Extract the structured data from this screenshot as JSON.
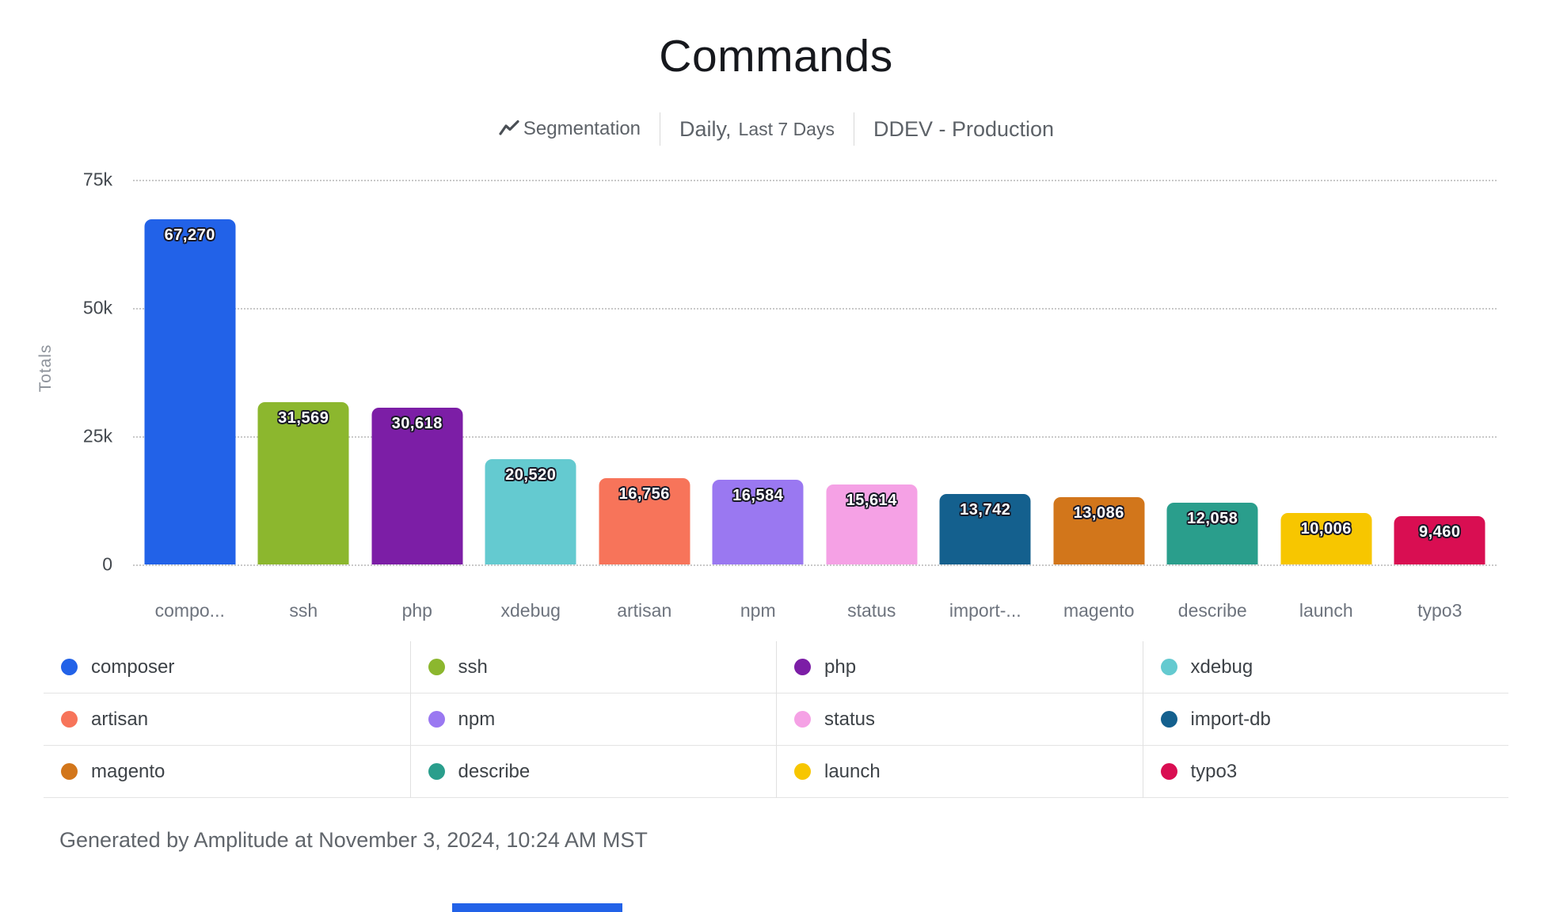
{
  "header": {
    "title": "Commands"
  },
  "subtitle": {
    "segmentation_label": "Segmentation",
    "range_primary": "Daily,",
    "range_secondary": "Last 7 Days",
    "project_label": "DDEV - Production"
  },
  "chart_data": {
    "type": "bar",
    "title": "Commands",
    "xlabel": "",
    "ylabel": "Totals",
    "ylim": [
      0,
      75000
    ],
    "grid": "horizontal dotted",
    "legend_position": "bottom table, 4 columns",
    "yticks": [
      {
        "value": 0,
        "label": "0"
      },
      {
        "value": 25000,
        "label": "25k"
      },
      {
        "value": 50000,
        "label": "50k"
      },
      {
        "value": 75000,
        "label": "75k"
      }
    ],
    "bars": [
      {
        "name": "composer",
        "x_label": "compo...",
        "value": 67270,
        "value_label": "67,270",
        "color": "#2262e8"
      },
      {
        "name": "ssh",
        "x_label": "ssh",
        "value": 31569,
        "value_label": "31,569",
        "color": "#8cb72e"
      },
      {
        "name": "php",
        "x_label": "php",
        "value": 30618,
        "value_label": "30,618",
        "color": "#7c1ea6"
      },
      {
        "name": "xdebug",
        "x_label": "xdebug",
        "value": 20520,
        "value_label": "20,520",
        "color": "#64cad0"
      },
      {
        "name": "artisan",
        "x_label": "artisan",
        "value": 16756,
        "value_label": "16,756",
        "color": "#f7745a"
      },
      {
        "name": "npm",
        "x_label": "npm",
        "value": 16584,
        "value_label": "16,584",
        "color": "#9a78f1"
      },
      {
        "name": "status",
        "x_label": "status",
        "value": 15614,
        "value_label": "15,614",
        "color": "#f5a1e5"
      },
      {
        "name": "import-db",
        "x_label": "import-...",
        "value": 13742,
        "value_label": "13,742",
        "color": "#14608e"
      },
      {
        "name": "magento",
        "x_label": "magento",
        "value": 13086,
        "value_label": "13,086",
        "color": "#d2761b"
      },
      {
        "name": "describe",
        "x_label": "describe",
        "value": 12058,
        "value_label": "12,058",
        "color": "#2a9e8c"
      },
      {
        "name": "launch",
        "x_label": "launch",
        "value": 10006,
        "value_label": "10,006",
        "color": "#f7c600"
      },
      {
        "name": "typo3",
        "x_label": "typo3",
        "value": 9460,
        "value_label": "9,460",
        "color": "#d90e52"
      }
    ]
  },
  "footer": {
    "text": "Generated by Amplitude at November 3, 2024, 10:24 AM MST"
  },
  "accent_color": "#2262e8"
}
